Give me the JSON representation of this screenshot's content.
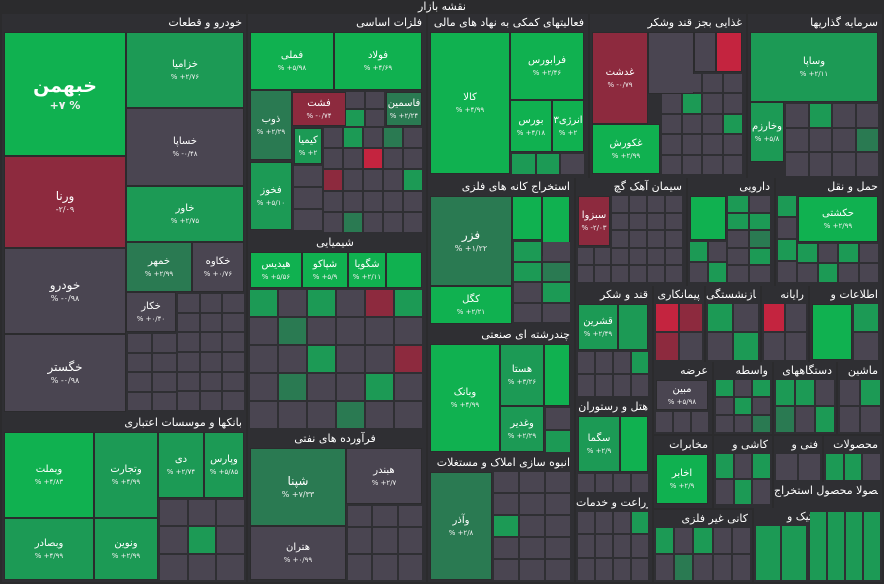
{
  "title": "نقشه بازار",
  "sections": {
    "khodro": "خودرو و قطعات",
    "felezat": "فلزات اساسی",
    "fani": "فعالیتهای کمکی به نهاد های مالی",
    "ghazaei": "غذایی بجز قند وشکر",
    "sarmaye": "سرمایه گذاریها",
    "estekhraj": "استخراج کانه های فلزی",
    "siman": "سیمان آهک گچ",
    "darooei": "دارویی",
    "haml": "حمل و نقل",
    "shimiaei": "شیمیایی",
    "bankha": "بانکها و موسسات اعتباری",
    "farvardeh": "فرآورده های نفتی",
    "chandreshte": "چندرشته ای صنعتی",
    "ghand": "قند و شکر",
    "pimankari": "پیمانکاری",
    "bime": "بیمه و بازنشستگی",
    "rayane": "رایانه",
    "etelaat": "اطلاعات و",
    "hotel": "هتل و رستوران",
    "anbooh": "انبوه سازی املاک و مستغلات",
    "zeraat": "زراعت و خدمات",
    "kanigheir": "کانی غیر فلزی",
    "arze": "عرضه",
    "vaseteh": "واسطه",
    "dastgah": "دستگاههای",
    "mashin": "ماشین",
    "mokhaberat": "مخابرات",
    "kashi": "کاشی و",
    "fanni": "فنی و",
    "mahsoolat": "محصولات",
    "mahsoolat2": "محصولا محصول استخراج",
    "tik": "تیک و"
  },
  "tiles": {
    "khebahman": {
      "name": "خبهمن",
      "pct": "+۷ %"
    },
    "khazamia": {
      "name": "خزامیا",
      "pct": "% +۲/۷۶"
    },
    "khsapa": {
      "name": "خساپا",
      "pct": "% -۰/۴۸"
    },
    "varna": {
      "name": "ورنا",
      "pct": "-۲/۰۹"
    },
    "khavar": {
      "name": "خاور",
      "pct": "% +۲/۷۵"
    },
    "khodro": {
      "name": "خودرو",
      "pct": "% -۰/۹۸"
    },
    "khomehr": {
      "name": "خمهر",
      "pct": "% +۲/۹۹"
    },
    "khakave": {
      "name": "خکاوه",
      "pct": "% +۰/۷۶"
    },
    "khekar": {
      "name": "خکار",
      "pct": "% +۰/۴۰"
    },
    "khegostar": {
      "name": "خگستر",
      "pct": "% -۰/۹۸"
    },
    "fameli": {
      "name": "فملی",
      "pct": "% +۵/۹۸"
    },
    "foolad": {
      "name": "فولاد",
      "pct": "% +۴/۶۹"
    },
    "fasht": {
      "name": "فشت",
      "pct": "% -۰/۷۴"
    },
    "zob": {
      "name": "ذوب",
      "pct": "% +۲/۲۹"
    },
    "fakhasmin": {
      "name": "فاسمین",
      "pct": "% +۲/۲۴"
    },
    "kimia": {
      "name": "کیمیا",
      "pct": "% +۲"
    },
    "fakhooz": {
      "name": "فخوز",
      "pct": "% +۵/۱۰"
    },
    "kala": {
      "name": "کالا",
      "pct": "% +۴/۹۹"
    },
    "faraboors": {
      "name": "فرابورس",
      "pct": "% +۲/۴۶"
    },
    "boors": {
      "name": "بورس",
      "pct": "% +۴/۱۸"
    },
    "anrzhi3": {
      "name": "انرژی۳",
      "pct": "% +۲"
    },
    "ghadasht": {
      "name": "غدشت",
      "pct": "% -۰/۷۹"
    },
    "ghkoors": {
      "name": "غکورش",
      "pct": "% +۲/۹۹"
    },
    "vasapa": {
      "name": "وساپا",
      "pct": "% +۲/۱۱"
    },
    "vkharazm": {
      "name": "وخارزم",
      "pct": "% +۵/۸"
    },
    "fazar": {
      "name": "فزر",
      "pct": "% +۱/۲۲"
    },
    "kegol": {
      "name": "کگل",
      "pct": "% +۲/۲۱"
    },
    "sabzva": {
      "name": "سبزوا",
      "pct": "% -۲/۰۳"
    },
    "hakashti": {
      "name": "حکشتی",
      "pct": "% +۲/۹۹"
    },
    "shagooya": {
      "name": "شگویا",
      "pct": "% +۲/۱۱"
    },
    "shapiko": {
      "name": "شپاکو",
      "pct": "% +۵/۹"
    },
    "hidis": {
      "name": "هیدیس",
      "pct": "% +۵/۵۶"
    },
    "vebmellat": {
      "name": "وبملت",
      "pct": "% +۴/۸۳"
    },
    "vtejarat": {
      "name": "وتجارت",
      "pct": "% +۴/۹۹"
    },
    "di": {
      "name": "دی",
      "pct": "% +۲/۷۴"
    },
    "vpars": {
      "name": "وپارس",
      "pct": "% +۵/۸۵"
    },
    "vsadr": {
      "name": "وبصادر",
      "pct": "% +۴/۹۹"
    },
    "vnovin": {
      "name": "ونوین",
      "pct": "% +۲/۹۹"
    },
    "shepna": {
      "name": "شپنا",
      "pct": "% +۷/۳۳"
    },
    "hebandar": {
      "name": "هبندر",
      "pct": "% +۲/۷"
    },
    "heteran": {
      "name": "هتران",
      "pct": "% +۰/۹۹"
    },
    "vbank": {
      "name": "وبانک",
      "pct": "% +۴/۹۹"
    },
    "hasta": {
      "name": "هستا",
      "pct": "% +۳/۲۶"
    },
    "vghadir": {
      "name": "وغدیر",
      "pct": "% +۲/۲۹"
    },
    "ghshirin": {
      "name": "قشرین",
      "pct": "% +۲/۴۹"
    },
    "sgama": {
      "name": "سگما",
      "pct": "% +۲/۹"
    },
    "vaazar": {
      "name": "وآذر",
      "pct": "% +۲/۸"
    },
    "mobin": {
      "name": "مبین",
      "pct": "% +۵/۹۸"
    },
    "akhaber": {
      "name": "اخابر",
      "pct": "% +۲/۹"
    }
  }
}
